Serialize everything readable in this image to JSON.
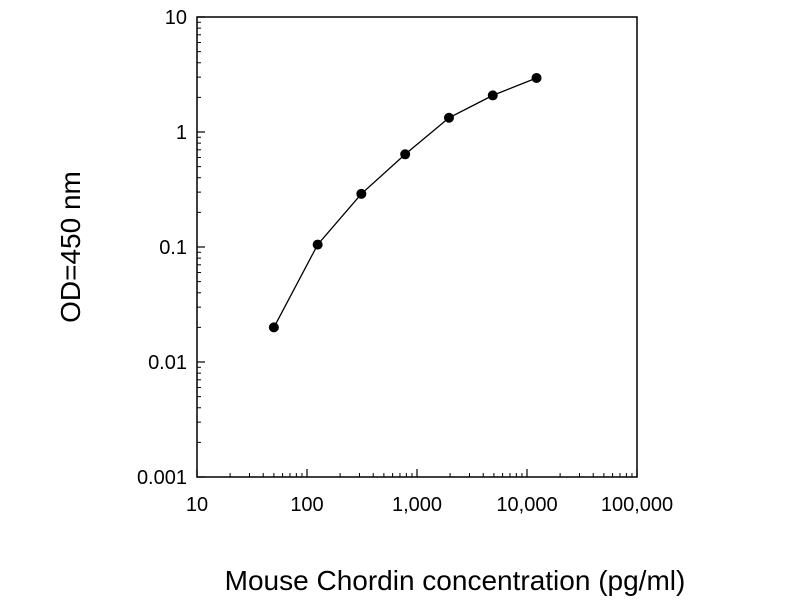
{
  "chart_data": {
    "type": "line",
    "title": "",
    "xlabel": "Mouse Chordin concentration (pg/ml)",
    "ylabel": "OD=450 nm",
    "xscale": "log",
    "yscale": "log",
    "xlim": [
      10,
      100000
    ],
    "ylim": [
      0.001,
      10
    ],
    "xticks": [
      10,
      100,
      1000,
      10000,
      100000
    ],
    "xtick_labels": [
      "10",
      "100",
      "1,000",
      "10,000",
      "100,000"
    ],
    "yticks": [
      0.001,
      0.01,
      0.1,
      1,
      10
    ],
    "ytick_labels": [
      "0.001",
      "0.01",
      "0.1",
      "1",
      "10"
    ],
    "grid": false,
    "legend": "none",
    "series": [
      {
        "x": [
          50,
          125,
          312,
          781,
          1953,
          4883,
          12207
        ],
        "y": [
          0.02,
          0.105,
          0.29,
          0.64,
          1.33,
          2.08,
          2.95
        ],
        "color": "#000000",
        "marker": "circle"
      }
    ]
  }
}
